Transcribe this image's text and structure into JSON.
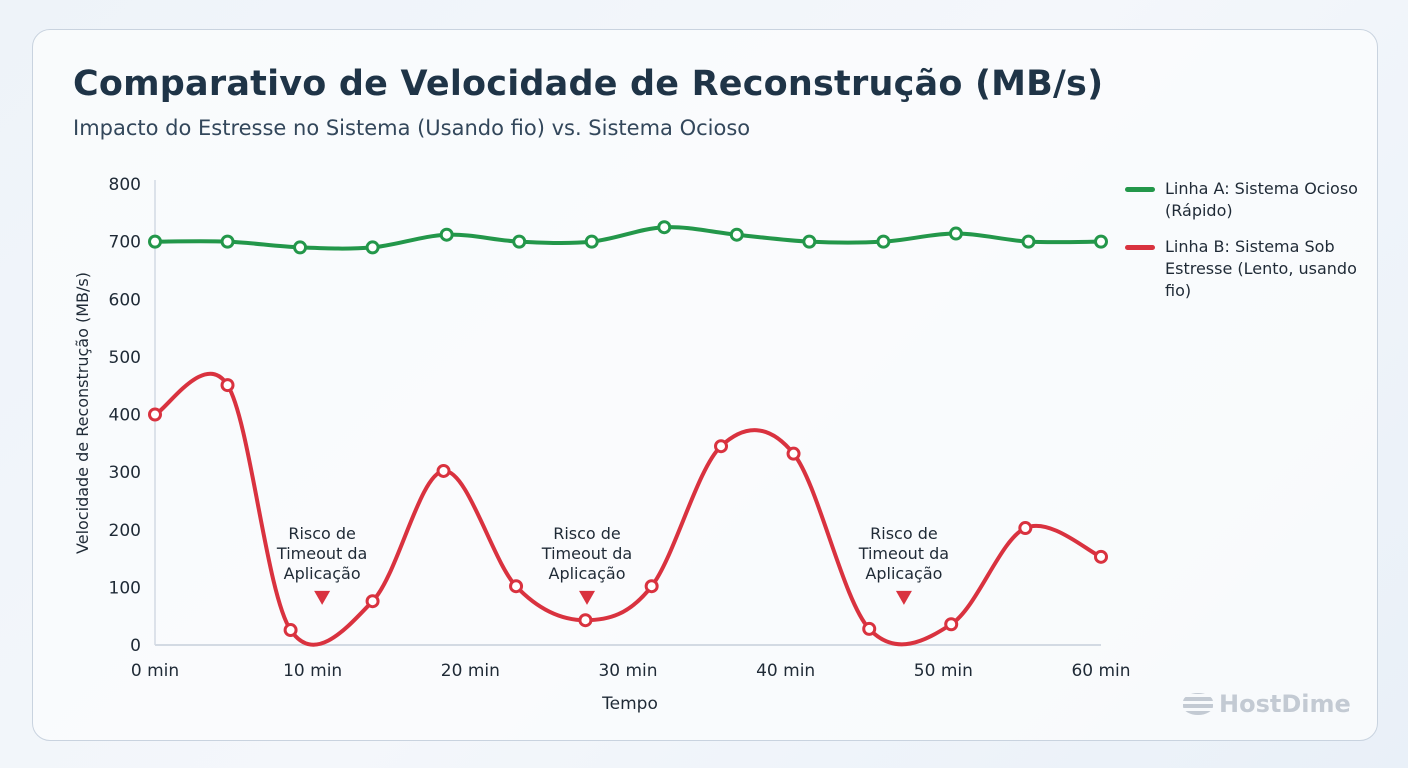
{
  "chart_data": {
    "type": "line",
    "title": "Comparativo de Velocidade de Reconstrução (MB/s)",
    "subtitle": "Impacto do Estresse no Sistema (Usando fio) vs. Sistema Ocioso",
    "xlabel": "Tempo",
    "ylabel": "Velocidade de Reconstrução (MB/s)",
    "xlim": [
      0,
      60
    ],
    "ylim": [
      0,
      800
    ],
    "x_ticks": [
      "0 min",
      "10 min",
      "20 min",
      "30 min",
      "40 min",
      "50 min",
      "60 min"
    ],
    "x_tick_values": [
      0,
      10,
      20,
      30,
      40,
      50,
      60
    ],
    "y_ticks": [
      "0",
      "100",
      "200",
      "300",
      "400",
      "500",
      "600",
      "700",
      "800"
    ],
    "y_tick_values": [
      0,
      100,
      200,
      300,
      400,
      500,
      600,
      700,
      800
    ],
    "grid": false,
    "legend_position": "right",
    "series": [
      {
        "name": "Linha A: Sistema Ocioso (Rápido)",
        "color": "#23974a",
        "x": [
          0,
          4.6,
          9.2,
          13.8,
          18.5,
          23.1,
          27.7,
          32.3,
          36.9,
          41.5,
          46.2,
          50.8,
          55.4,
          60
        ],
        "y": [
          700,
          700,
          690,
          690,
          712,
          700,
          700,
          725,
          712,
          700,
          700,
          714,
          700,
          700
        ]
      },
      {
        "name": "Linha B: Sistema Sob Estresse (Lento, usando fio)",
        "color": "#d9323f",
        "x": [
          0,
          4.6,
          8.6,
          13.8,
          18.3,
          22.9,
          27.3,
          31.5,
          35.9,
          40.5,
          45.3,
          50.5,
          55.2,
          60
        ],
        "y": [
          400,
          451,
          26,
          76,
          302,
          102,
          43,
          102,
          345,
          332,
          28,
          36,
          203,
          153
        ]
      }
    ],
    "annotations": [
      {
        "text": "Risco de Timeout da Aplicação",
        "x": 10.6,
        "y": 80
      },
      {
        "text": "Risco de Timeout da Aplicação",
        "x": 27.4,
        "y": 80
      },
      {
        "text": "Risco de Timeout da Aplicação",
        "x": 47.5,
        "y": 80
      }
    ]
  },
  "brand": "HostDime"
}
